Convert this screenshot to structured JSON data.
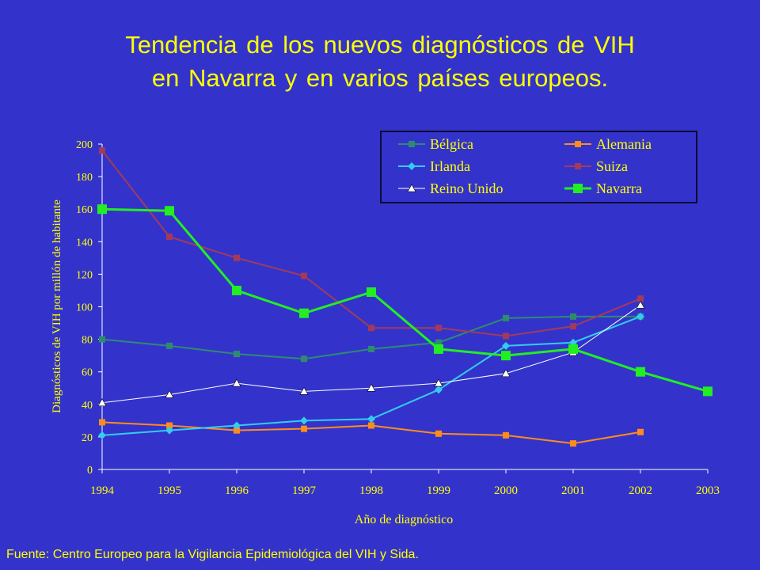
{
  "slide": {
    "title_line1": "Tendencia de los nuevos diagnósticos de VIH",
    "title_line2": "en Navarra y en varios países europeos.",
    "source": "Fuente: Centro Europeo para la Vigilancia Epidemiológica del VIH y Sida."
  },
  "colors": {
    "background": "#3333cc",
    "text": "#ffff00",
    "axis": "#ffffff"
  },
  "chart_data": {
    "type": "line",
    "xlabel": "Año de diagnóstico",
    "ylabel": "Diagnósticos de VIH por millón de habitante",
    "x": [
      "1994",
      "1995",
      "1996",
      "1997",
      "1998",
      "1999",
      "2000",
      "2001",
      "2002",
      "2003"
    ],
    "ylim": [
      0,
      200
    ],
    "yticks": [
      0,
      20,
      40,
      60,
      80,
      100,
      120,
      140,
      160,
      180,
      200
    ],
    "grid": false,
    "legend_position": "top-right",
    "series": [
      {
        "name": "Bélgica",
        "color": "#2e8b6e",
        "marker": "square",
        "values": [
          80,
          76,
          71,
          68,
          74,
          78,
          93,
          94,
          94,
          null
        ]
      },
      {
        "name": "Alemania",
        "color": "#ff8c1a",
        "marker": "square",
        "values": [
          29,
          27,
          24,
          25,
          27,
          22,
          21,
          16,
          23,
          null
        ]
      },
      {
        "name": "Irlanda",
        "color": "#33ccee",
        "marker": "diamond",
        "values": [
          21,
          24,
          27,
          30,
          31,
          49,
          76,
          78,
          94,
          null
        ]
      },
      {
        "name": "Suiza",
        "color": "#a33a5a",
        "marker": "square",
        "values": [
          196,
          143,
          130,
          119,
          87,
          87,
          82,
          88,
          105,
          null
        ]
      },
      {
        "name": "Reino Unido",
        "color": "#ffffff",
        "marker": "triangle",
        "values": [
          41,
          46,
          53,
          48,
          50,
          53,
          59,
          72,
          101,
          null
        ]
      },
      {
        "name": "Navarra",
        "color": "#22ee22",
        "marker": "square-large",
        "values": [
          160,
          159,
          110,
          96,
          109,
          74,
          70,
          74,
          60,
          48
        ]
      }
    ]
  }
}
